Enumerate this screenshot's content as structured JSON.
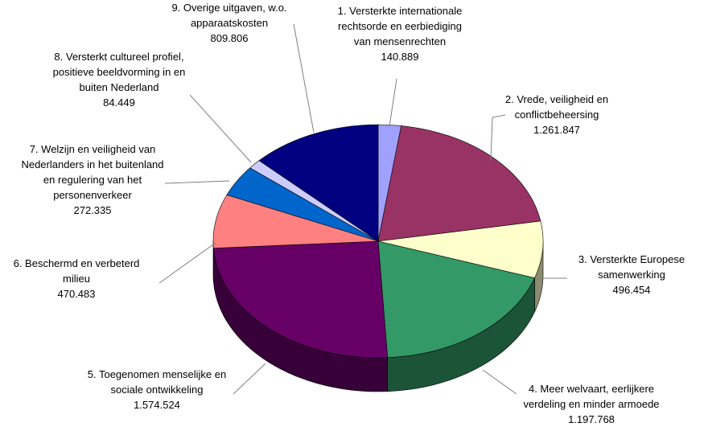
{
  "chart_data": {
    "type": "pie3d",
    "categories": [
      "1. Versterkte internationale\nrechtsorde en eerbiediging\nvan mensenrechten",
      "2. Vrede, veiligheid en\nconflictbeheersing",
      "3. Versterkte Europese\nsamenwerking",
      "4. Meer welvaart, eerlijkere\nverdeling en minder armoede",
      "5. Toegenomen menselijke en\nsociale ontwikkeling",
      "6. Beschermd en verbeterd\nmilieu",
      "7. Welzijn en veiligheid van\nNederlanders in het buitenland\nen regulering van het\npersonenverkeer",
      "8. Versterkt cultureel profiel,\npositieve beeldvorming in en\nbuiten Nederland",
      "9. Overige uitgaven, w.o.\napparaatskosten"
    ],
    "values": [
      140889,
      1261847,
      496454,
      1197768,
      1574524,
      470483,
      272335,
      84449,
      809806
    ],
    "value_labels": [
      "140.889",
      "1.261.847",
      "496.454",
      "1.197.768",
      "1.574.524",
      "470.483",
      "272.335",
      "84.449",
      "809.806"
    ],
    "colors": [
      "#a0a0ff",
      "#993366",
      "#ffffcc",
      "#339966",
      "#660066",
      "#ff8080",
      "#0066cc",
      "#ccccff",
      "#000080"
    ]
  }
}
